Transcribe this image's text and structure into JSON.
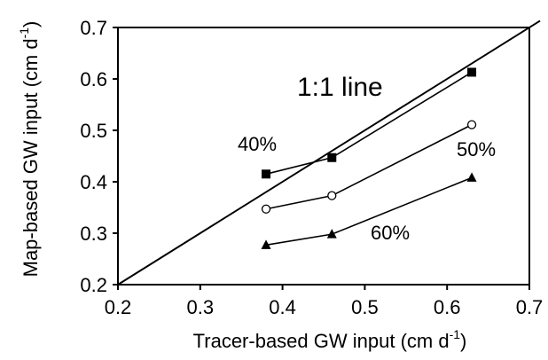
{
  "chart_data": {
    "type": "scatter",
    "title": "",
    "xlabel": "Tracer-based GW input (cm d",
    "xlabel_sup": "-1",
    "xlabel_end": ")",
    "ylabel": "Map-based GW input (cm d",
    "ylabel_sup": "-1",
    "ylabel_end": ")",
    "xlim": [
      0.2,
      0.7
    ],
    "ylim": [
      0.2,
      0.7
    ],
    "xticks": [
      "0.2",
      "0.3",
      "0.4",
      "0.5",
      "0.6",
      "0.7"
    ],
    "yticks": [
      "0.2",
      "0.3",
      "0.4",
      "0.5",
      "0.6",
      "0.7"
    ],
    "grid": false,
    "reference_line": {
      "label": "1:1 line",
      "from": [
        0.2,
        0.2
      ],
      "to": [
        0.7,
        0.7
      ]
    },
    "series": [
      {
        "name": "40%",
        "marker": "filled-square",
        "x": [
          0.38,
          0.46,
          0.63
        ],
        "y": [
          0.415,
          0.447,
          0.613
        ]
      },
      {
        "name": "50%",
        "marker": "open-circle",
        "x": [
          0.38,
          0.46,
          0.63
        ],
        "y": [
          0.347,
          0.373,
          0.511
        ]
      },
      {
        "name": "60%",
        "marker": "filled-triangle",
        "x": [
          0.38,
          0.46,
          0.63
        ],
        "y": [
          0.277,
          0.298,
          0.408
        ]
      }
    ]
  }
}
